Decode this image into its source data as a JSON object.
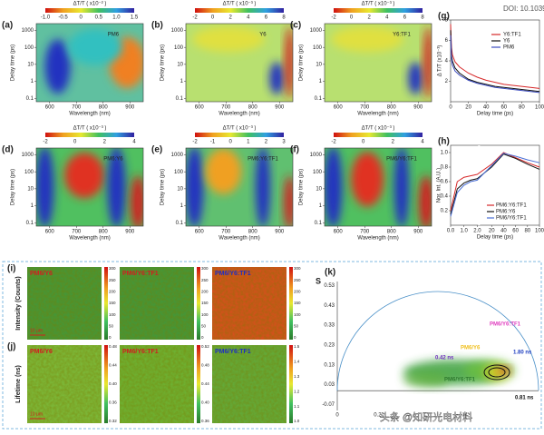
{
  "doi": "DOI: 10.1039",
  "heatmaps": [
    {
      "label": "(a)",
      "sample": "PM6",
      "cb_title": "ΔT/T ( x10⁻² )",
      "cb_ticks": [
        "-1.0",
        "-0.5",
        "0",
        "0.5",
        "1.0",
        "1.5"
      ],
      "x_label": "Wavelength (nm)",
      "x_ticks": [
        "600",
        "700",
        "800",
        "900"
      ],
      "y_label": "Delay time (ps)",
      "y_ticks": [
        "1000",
        "100",
        "10",
        "1",
        "0.1"
      ]
    },
    {
      "label": "(b)",
      "sample": "Y6",
      "cb_title": "ΔT/T ( x10⁻³ )",
      "cb_ticks": [
        "-2",
        "0",
        "2",
        "4",
        "6",
        "8"
      ],
      "x_label": "Wavelength (nm)",
      "x_ticks": [
        "600",
        "700",
        "800",
        "900"
      ],
      "y_label": "Delay time (ps)",
      "y_ticks": [
        "1000",
        "100",
        "10",
        "1",
        "0.1"
      ]
    },
    {
      "label": "(c)",
      "sample": "Y6:TF1",
      "cb_title": "ΔT/T ( x10⁻³ )",
      "cb_ticks": [
        "-2",
        "0",
        "2",
        "4",
        "6",
        "8"
      ],
      "x_label": "Wavelength (nm)",
      "x_ticks": [
        "600",
        "700",
        "800",
        "900"
      ],
      "y_label": "Delay time (ps)",
      "y_ticks": [
        "1000",
        "100",
        "10",
        "1",
        "0.1"
      ]
    },
    {
      "label": "(d)",
      "sample": "PM6:Y6",
      "cb_title": "ΔT/T ( x10⁻³ )",
      "cb_ticks": [
        "-2",
        "0",
        "2",
        "4"
      ],
      "x_label": "Wavelength (nm)",
      "x_ticks": [
        "600",
        "700",
        "800",
        "900"
      ],
      "y_label": "Delay time (ps)",
      "y_ticks": [
        "1000",
        "100",
        "10",
        "1",
        "0.1"
      ]
    },
    {
      "label": "(e)",
      "sample": "PM6:Y6:TF1",
      "cb_title": "ΔT/T ( x10⁻³ )",
      "cb_ticks": [
        "-2",
        "-1",
        "0",
        "1",
        "2",
        "3"
      ],
      "x_label": "Wavelength (nm)",
      "x_ticks": [
        "600",
        "700",
        "800",
        "900"
      ],
      "y_label": "Delay time (ps)",
      "y_ticks": [
        "1000",
        "100",
        "10",
        "1",
        "0.1"
      ]
    },
    {
      "label": "(f)",
      "sample": "PM6/Y6:TF1",
      "cb_title": "ΔT/T ( x10⁻³ )",
      "cb_ticks": [
        "-2",
        "0",
        "2",
        "4"
      ],
      "x_label": "Wavelength (nm)",
      "x_ticks": [
        "600",
        "700",
        "800",
        "900"
      ],
      "y_label": "Delay time (ps)",
      "y_ticks": [
        "1000",
        "100",
        "10",
        "1",
        "0.1"
      ]
    }
  ],
  "g": {
    "label": "(g)",
    "x_label": "Delay time (ps)",
    "y_label": "Δ T/T (x10⁻³)",
    "xlim": [
      0,
      100
    ],
    "ylim": [
      0,
      8
    ],
    "xticks": [
      0,
      20,
      40,
      60,
      80,
      100
    ],
    "yticks": [
      2,
      4,
      6,
      8
    ],
    "x": [
      0,
      1,
      2,
      5,
      10,
      20,
      30,
      40,
      50,
      60,
      70,
      80,
      90,
      100
    ],
    "series": [
      {
        "name": "Y6:TF1",
        "color": "#d62728",
        "values": [
          7.6,
          5.3,
          4.6,
          3.9,
          3.4,
          2.8,
          2.4,
          2.1,
          1.9,
          1.7,
          1.6,
          1.5,
          1.4,
          1.3
        ]
      },
      {
        "name": "Y6",
        "color": "#111111",
        "values": [
          7.0,
          4.6,
          4.0,
          3.3,
          2.8,
          2.2,
          1.9,
          1.7,
          1.5,
          1.4,
          1.3,
          1.2,
          1.1,
          1.0
        ]
      },
      {
        "name": "PM6",
        "color": "#3b4cc0",
        "values": [
          6.5,
          4.2,
          3.6,
          3.0,
          2.6,
          2.1,
          1.8,
          1.6,
          1.4,
          1.3,
          1.2,
          1.1,
          1.0,
          0.9
        ]
      }
    ]
  },
  "h": {
    "label": "(h)",
    "x_label": "Delay time (ps)",
    "y_label": "Nor. Int. (A.U.)",
    "ylim": [
      0,
      1.1
    ],
    "yticks": [
      {
        "value": 0.2,
        "label": "0.2"
      },
      {
        "value": 0.4,
        "label": "0.4"
      },
      {
        "value": 0.6,
        "label": "0.6"
      },
      {
        "value": 0.8,
        "label": "0.8"
      },
      {
        "value": 1,
        "label": "1.0"
      }
    ],
    "xticks": [
      {
        "value": 0,
        "label": "0.0"
      },
      {
        "value": 1,
        "label": "1.0"
      },
      {
        "value": 2,
        "label": "2.0"
      },
      20,
      40,
      60,
      80,
      100
    ],
    "x": [
      0,
      0.5,
      1,
      1.5,
      2,
      20,
      40,
      60,
      80,
      100
    ],
    "series": [
      {
        "name": "PM6:Y6:TF1",
        "color": "#d62728",
        "values": [
          0.2,
          0.6,
          0.66,
          0.68,
          0.7,
          0.84,
          1.0,
          0.93,
          0.86,
          0.8
        ]
      },
      {
        "name": "PM6:Y6",
        "color": "#111111",
        "values": [
          0.15,
          0.5,
          0.58,
          0.62,
          0.64,
          0.8,
          0.98,
          0.92,
          0.84,
          0.77
        ]
      },
      {
        "name": "PM6/Y6:TF1",
        "color": "#4a6fd6",
        "values": [
          0.12,
          0.45,
          0.55,
          0.6,
          0.62,
          0.82,
          0.99,
          0.95,
          0.9,
          0.86
        ]
      }
    ]
  },
  "i": {
    "label": "(i)",
    "y_label": "Intensity (Counts)",
    "images": [
      "PM6/Y6",
      "PM6/Y6:TF1",
      "PM6/Y6:TF1"
    ],
    "cb_ticks": [
      "300",
      "250",
      "200",
      "150",
      "100",
      "50",
      "0"
    ],
    "scale": "10 μm"
  },
  "j": {
    "label": "(j)",
    "y_label": "Lifetime (ns)",
    "images": [
      "PM6/Y6",
      "PM6/Y6:TF1",
      "PM6/Y6:TF1"
    ],
    "cb_ticks": [
      [
        "0.48",
        "0.44",
        "0.40",
        "0.36",
        "0.32"
      ],
      [
        "0.52",
        "0.48",
        "0.44",
        "0.40",
        "0.36"
      ],
      [
        "1.5",
        "1.4",
        "1.3",
        "1.2",
        "1.1",
        "1.0"
      ]
    ],
    "scale": "10 μm"
  },
  "k": {
    "label": "(k)",
    "y_label": "S",
    "yticks": [
      "0.53",
      "0.43",
      "0.33",
      "0.23",
      "0.13",
      "0.03",
      "-0.07"
    ],
    "xticks": [
      "0",
      "0.2"
    ],
    "tags": [
      "PM6/Y6:TF1",
      "PM6/Y6",
      "PM6/Y6:TF1",
      "1.80 ns",
      "0.42 ns",
      "0.81 ns"
    ]
  },
  "watermark": "头条 @知研光电材料"
}
